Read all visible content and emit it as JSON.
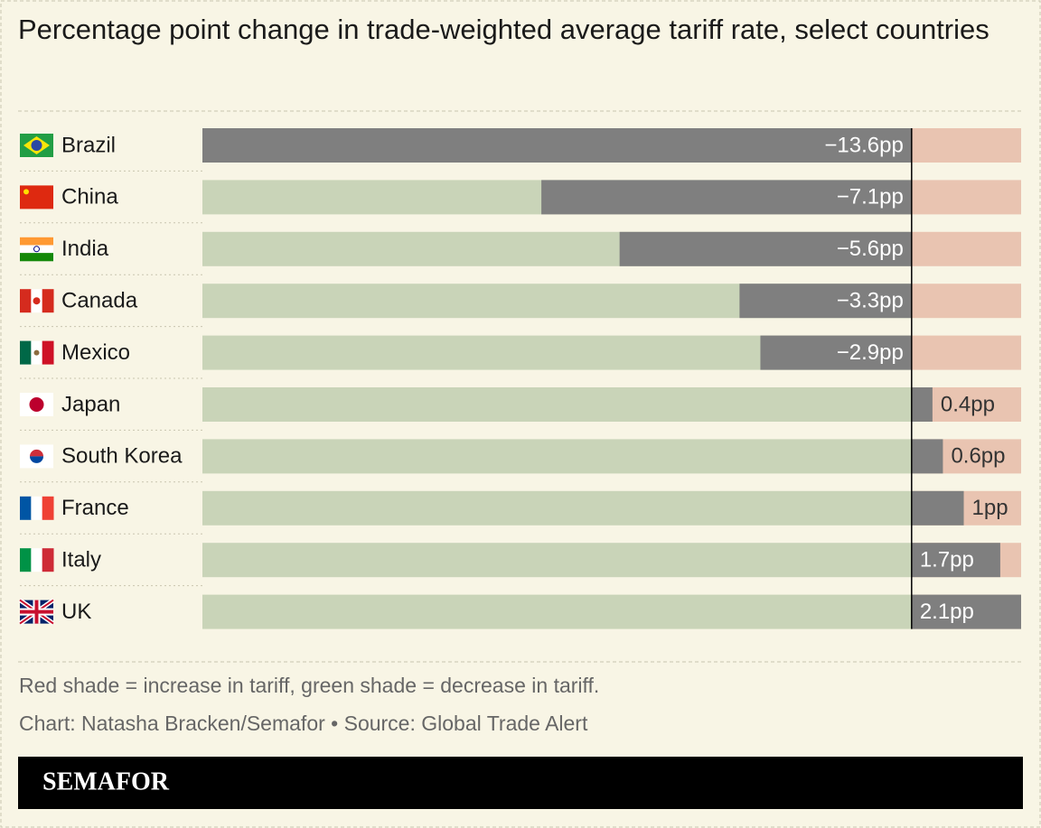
{
  "chart_data": {
    "type": "bar",
    "orientation": "horizontal",
    "title": "Percentage point change in trade-weighted average tariff rate, select countries",
    "categories": [
      "Brazil",
      "China",
      "India",
      "Canada",
      "Mexico",
      "Japan",
      "South Korea",
      "France",
      "Italy",
      "UK"
    ],
    "values": [
      -13.6,
      -7.1,
      -5.6,
      -3.3,
      -2.9,
      0.4,
      0.6,
      1,
      1.7,
      2.1
    ],
    "value_labels": [
      "−13.6pp",
      "−7.1pp",
      "−5.6pp",
      "−3.3pp",
      "−2.9pp",
      "0.4pp",
      "0.6pp",
      "1pp",
      "1.7pp",
      "2.1pp"
    ],
    "color": "#7f7f7f",
    "shade_colors": {
      "negative": "#c9d4b8",
      "positive": "#e9c4b1"
    },
    "xlim": [
      -13.6,
      2.1
    ],
    "note": "Red shade = increase in tariff, green shade = decrease in tariff.",
    "source": "Chart: Natasha Bracken/Semafor • Source: Global Trade Alert"
  },
  "footer": {
    "brand": "SEMAFOR"
  }
}
